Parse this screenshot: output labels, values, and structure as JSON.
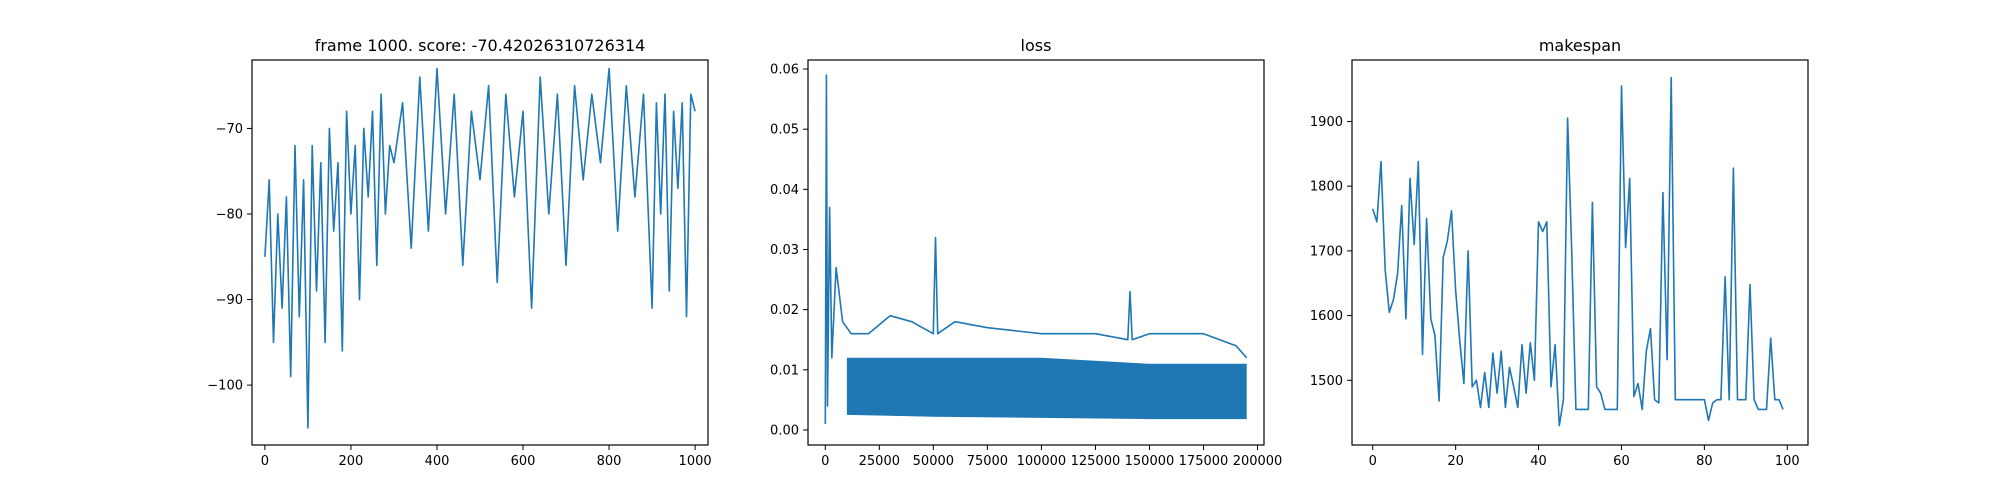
{
  "series_color": "#1f77b4",
  "chart_data": [
    {
      "type": "line",
      "title": "frame 1000. score: -70.42026310726314",
      "xlabel": "",
      "ylabel": "",
      "xlim": [
        -30,
        1030
      ],
      "ylim": [
        -107,
        -62
      ],
      "xticks": [
        0,
        200,
        400,
        600,
        800,
        1000
      ],
      "yticks": [
        -100,
        -90,
        -80,
        -70
      ],
      "grid": false,
      "series": [
        {
          "x": [
            0,
            10,
            20,
            30,
            40,
            50,
            60,
            70,
            80,
            90,
            100,
            110,
            120,
            130,
            140,
            150,
            160,
            170,
            180,
            190,
            200,
            210,
            220,
            230,
            240,
            250,
            260,
            270,
            280,
            290,
            300,
            320,
            340,
            360,
            380,
            400,
            420,
            440,
            460,
            480,
            500,
            520,
            540,
            560,
            580,
            600,
            620,
            640,
            660,
            680,
            700,
            720,
            740,
            760,
            780,
            800,
            820,
            840,
            860,
            880,
            900,
            910,
            920,
            930,
            940,
            950,
            960,
            970,
            980,
            990,
            1000
          ],
          "y": [
            -85,
            -76,
            -95,
            -80,
            -91,
            -78,
            -99,
            -72,
            -92,
            -76,
            -105,
            -72,
            -89,
            -74,
            -95,
            -70,
            -82,
            -74,
            -96,
            -68,
            -80,
            -72,
            -90,
            -70,
            -78,
            -68,
            -86,
            -66,
            -80,
            -72,
            -74,
            -67,
            -84,
            -64,
            -82,
            -63,
            -80,
            -66,
            -86,
            -68,
            -76,
            -65,
            -88,
            -66,
            -78,
            -68,
            -91,
            -64,
            -80,
            -66,
            -86,
            -65,
            -76,
            -66,
            -74,
            -63,
            -82,
            -65,
            -78,
            -66,
            -91,
            -67,
            -80,
            -66,
            -89,
            -68,
            -77,
            -67,
            -92,
            -66,
            -68
          ]
        }
      ]
    },
    {
      "type": "line",
      "title": "loss",
      "xlabel": "",
      "ylabel": "",
      "xlim": [
        -8000,
        203000
      ],
      "ylim": [
        -0.0025,
        0.0615
      ],
      "xticks": [
        0,
        25000,
        50000,
        75000,
        100000,
        125000,
        150000,
        175000,
        200000
      ],
      "yticks": [
        0.0,
        0.01,
        0.02,
        0.03,
        0.04,
        0.05,
        0.06
      ],
      "ytick_labels": [
        "0.00",
        "0.01",
        "0.02",
        "0.03",
        "0.04",
        "0.05",
        "0.06"
      ],
      "grid": false,
      "series": [
        {
          "x": [
            0,
            500,
            1000,
            2000,
            3000,
            5000,
            8000,
            12000,
            20000,
            30000,
            40000,
            50000,
            51000,
            52000,
            60000,
            75000,
            100000,
            125000,
            140000,
            141000,
            142000,
            150000,
            175000,
            190000,
            195000
          ],
          "y": [
            0.001,
            0.059,
            0.004,
            0.037,
            0.012,
            0.027,
            0.018,
            0.016,
            0.016,
            0.019,
            0.018,
            0.016,
            0.032,
            0.016,
            0.018,
            0.017,
            0.016,
            0.016,
            0.015,
            0.023,
            0.015,
            0.016,
            0.016,
            0.014,
            0.012
          ]
        }
      ],
      "band": {
        "x": [
          10000,
          50000,
          100000,
          150000,
          195000
        ],
        "lower": [
          0.0025,
          0.0022,
          0.002,
          0.0018,
          0.0018
        ],
        "upper": [
          0.012,
          0.012,
          0.012,
          0.011,
          0.011
        ]
      }
    },
    {
      "type": "line",
      "title": "makespan",
      "xlabel": "",
      "ylabel": "",
      "xlim": [
        -5,
        105
      ],
      "ylim": [
        1400,
        1995
      ],
      "xticks": [
        0,
        20,
        40,
        60,
        80,
        100
      ],
      "yticks": [
        1500,
        1600,
        1700,
        1800,
        1900
      ],
      "grid": false,
      "series": [
        {
          "x": [
            0,
            1,
            2,
            3,
            4,
            5,
            6,
            7,
            8,
            9,
            10,
            11,
            12,
            13,
            14,
            15,
            16,
            17,
            18,
            19,
            20,
            21,
            22,
            23,
            24,
            25,
            26,
            27,
            28,
            29,
            30,
            31,
            32,
            33,
            34,
            35,
            36,
            37,
            38,
            39,
            40,
            41,
            42,
            43,
            44,
            45,
            46,
            47,
            48,
            49,
            50,
            51,
            52,
            53,
            54,
            55,
            56,
            57,
            58,
            59,
            60,
            61,
            62,
            63,
            64,
            65,
            66,
            67,
            68,
            69,
            70,
            71,
            72,
            73,
            74,
            75,
            76,
            77,
            78,
            79,
            80,
            81,
            82,
            83,
            84,
            85,
            86,
            87,
            88,
            89,
            90,
            91,
            92,
            93,
            94,
            95,
            96,
            97,
            98,
            99
          ],
          "y": [
            1765,
            1745,
            1838,
            1670,
            1605,
            1625,
            1665,
            1770,
            1595,
            1812,
            1710,
            1838,
            1540,
            1750,
            1595,
            1570,
            1468,
            1690,
            1715,
            1762,
            1640,
            1560,
            1495,
            1700,
            1490,
            1500,
            1458,
            1512,
            1458,
            1542,
            1480,
            1545,
            1458,
            1520,
            1490,
            1458,
            1555,
            1480,
            1558,
            1500,
            1745,
            1730,
            1745,
            1490,
            1555,
            1430,
            1470,
            1905,
            1700,
            1455,
            1455,
            1455,
            1455,
            1775,
            1490,
            1480,
            1455,
            1455,
            1455,
            1455,
            1955,
            1705,
            1812,
            1475,
            1495,
            1455,
            1545,
            1580,
            1470,
            1465,
            1790,
            1532,
            1968,
            1470,
            1470,
            1470,
            1470,
            1470,
            1470,
            1470,
            1470,
            1438,
            1465,
            1470,
            1470,
            1660,
            1470,
            1828,
            1470,
            1470,
            1470,
            1648,
            1470,
            1455,
            1455,
            1455,
            1565,
            1470,
            1470,
            1455
          ]
        }
      ]
    }
  ]
}
